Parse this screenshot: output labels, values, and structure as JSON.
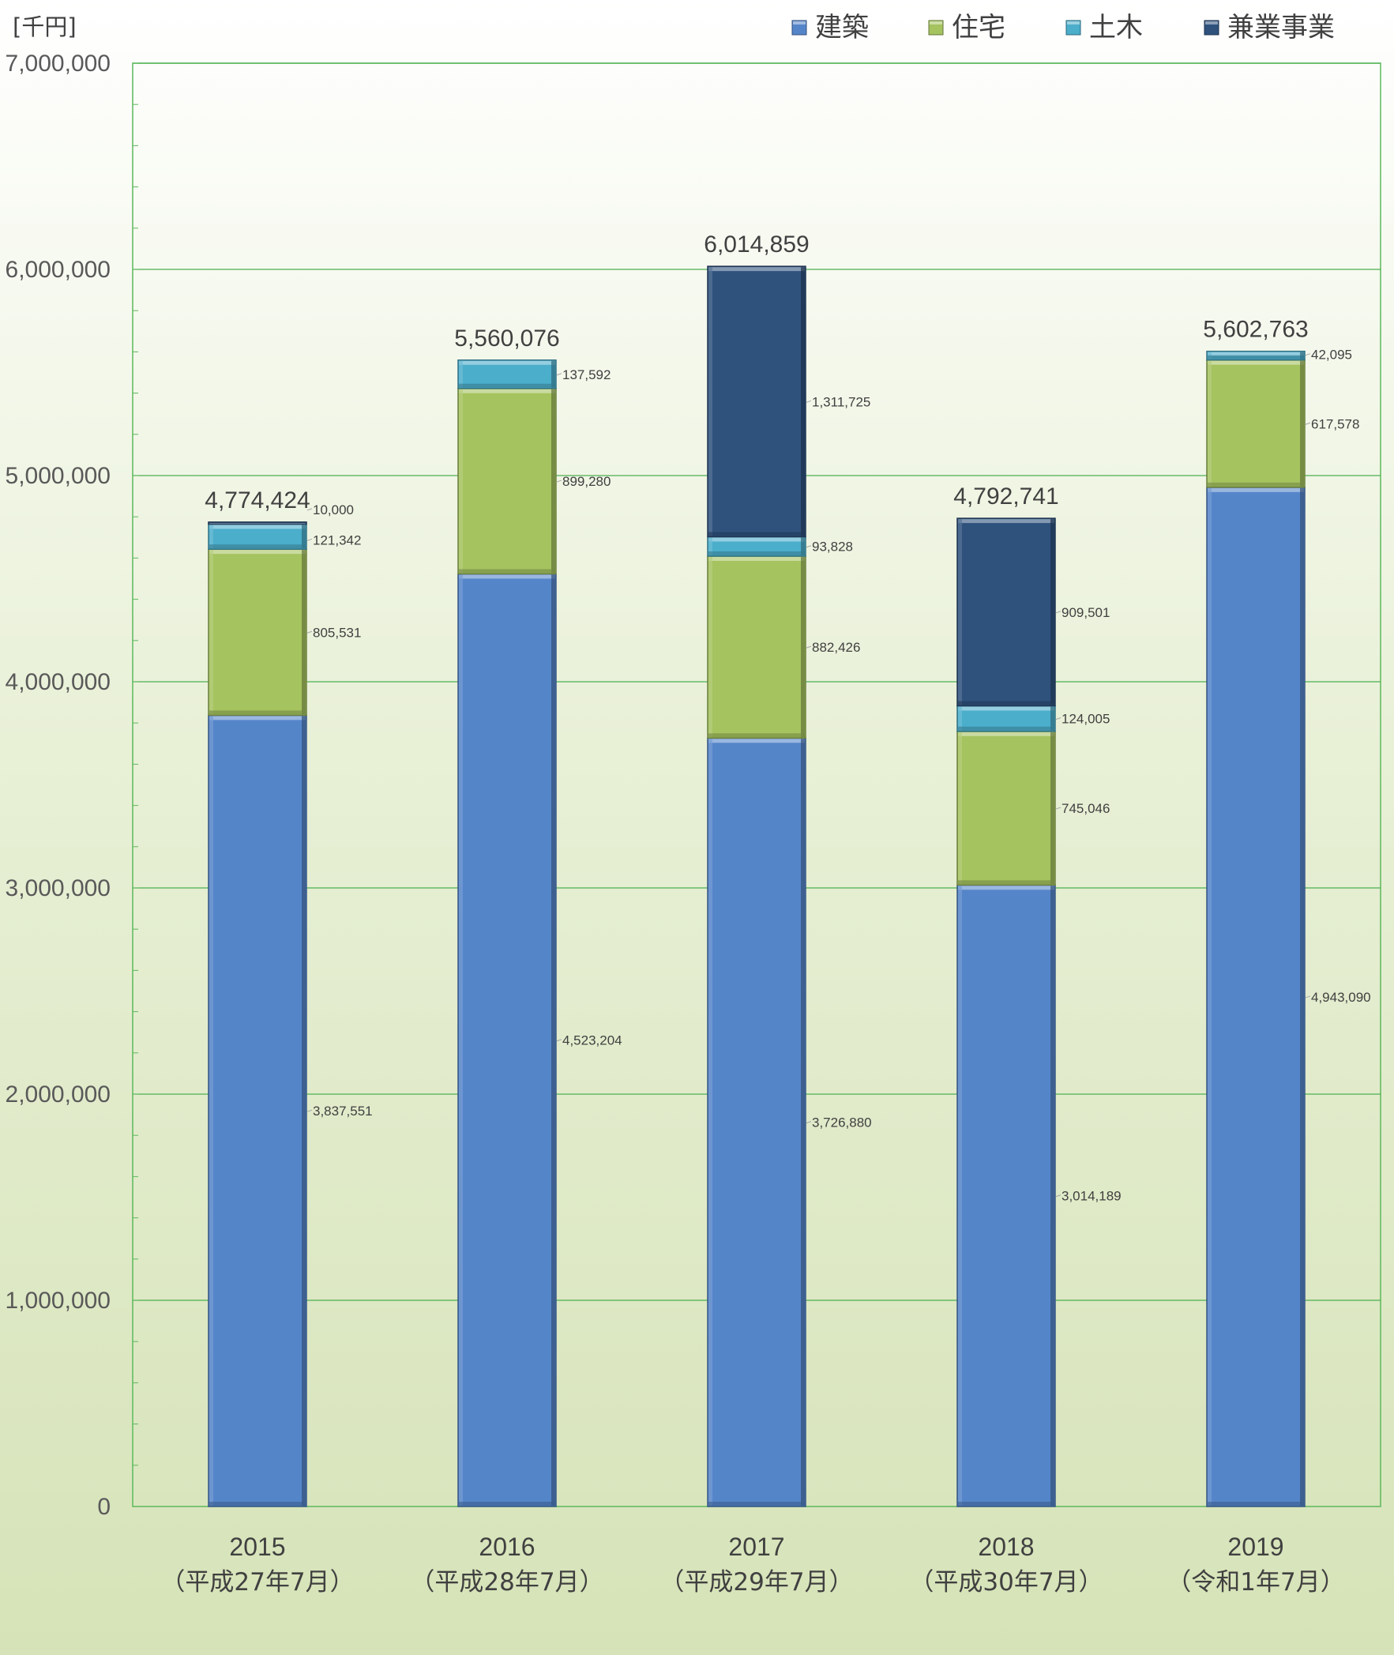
{
  "chart_data": {
    "type": "bar",
    "stacked": true,
    "unit_label": "[千円]",
    "categories": [
      "2015",
      "2016",
      "2017",
      "2018",
      "2019"
    ],
    "category_sublabels": [
      "（平成27年7月）",
      "（平成28年7月）",
      "（平成29年7月）",
      "（平成30年7月）",
      "（令和1年7月）"
    ],
    "ylim": [
      0,
      7000000
    ],
    "yticks": [
      0,
      1000000,
      2000000,
      3000000,
      4000000,
      5000000,
      6000000,
      7000000
    ],
    "ytick_labels": [
      "0",
      "1,000,000",
      "2,000,000",
      "3,000,000",
      "4,000,000",
      "5,000,000",
      "6,000,000",
      "7,000,000"
    ],
    "grid": true,
    "legend_position": "top-right",
    "series": [
      {
        "name": "建築",
        "color": "#5585C9",
        "values": [
          3837551,
          4523204,
          3726880,
          3014189,
          4943090
        ],
        "labels": [
          "3,837,551",
          "4,523,204",
          "3,726,880",
          "3,014,189",
          "4,943,090"
        ]
      },
      {
        "name": "住宅",
        "color": "#A5C35F",
        "values": [
          805531,
          899280,
          882426,
          745046,
          617578
        ],
        "labels": [
          "805,531",
          "899,280",
          "882,426",
          "745,046",
          "617,578"
        ]
      },
      {
        "name": "土木",
        "color": "#4BAECB",
        "values": [
          121342,
          137592,
          93828,
          124005,
          42095
        ],
        "labels": [
          "121,342",
          "137,592",
          "93,828",
          "124,005",
          "42,095"
        ]
      },
      {
        "name": "兼業事業",
        "color": "#2F527D",
        "values": [
          10000,
          0,
          1311725,
          909501,
          0
        ],
        "labels": [
          "10,000",
          "",
          "1,311,725",
          "909,501",
          ""
        ]
      }
    ],
    "totals": [
      4774424,
      5560076,
      6014859,
      4792741,
      5602763
    ],
    "total_labels": [
      "4,774,424",
      "5,560,076",
      "6,014,859",
      "4,792,741",
      "5,602,763"
    ]
  }
}
